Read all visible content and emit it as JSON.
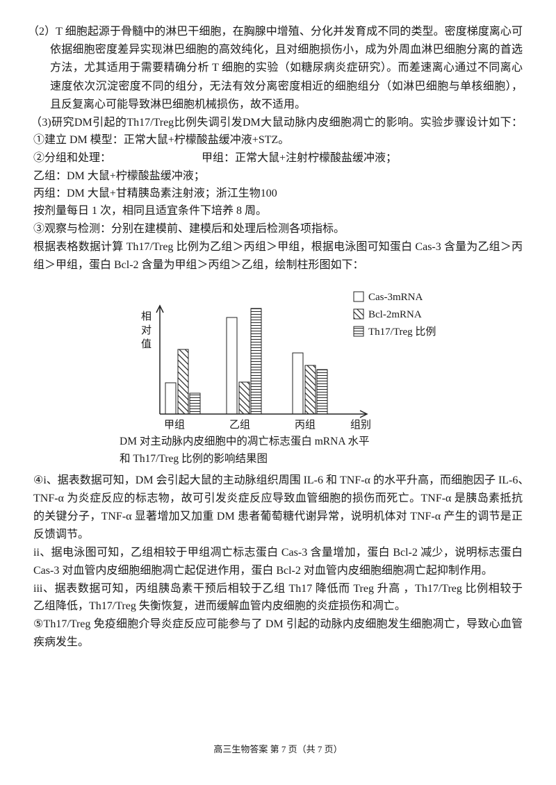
{
  "section2": {
    "lines": [
      "（2）T 细胞起源于骨髓中的淋巴干细胞，在胸腺中增殖、分化并发育成不同的类型。密度梯度离心可",
      "依据细胞密度差异实现淋巴细胞的高效纯化，且对细胞损伤小，成为外周血淋巴细胞分离的首选",
      "方法，尤其适用于需要精确分析 T 细胞的实验（如糖尿病炎症研究）。而差速离心通过不同离心",
      "速度依次沉淀密度不同的组分，无法有效分离密度相近的细胞组分（如淋巴细胞与单核细胞），",
      "且反复离心可能导致淋巴细胞机械损伤，故不适用。"
    ]
  },
  "section3": {
    "lines": [
      "（3)研究DM引起的Th17/Treg比例失调引发DM大鼠动脉内皮细胞凋亡的影响。实验步骤设计如下：",
      "①建立 DM 模型：正常大鼠+柠檬酸盐缓冲液+STZ。",
      "②分组和处理：",
      "乙组：DM 大鼠+柠檬酸盐缓冲液；",
      "丙组：DM 大鼠+甘精胰岛素注射液；浙江生物100",
      "按剂量每日 1 次，相同且适宜条件下培养 8 周。",
      "③观察与检测：分别在建模前、建模后和处理后检测各项指标。",
      "根据表格数据计算 Th17/Treg 比例为乙组＞丙组＞甲组，根据电泳图可知蛋白 Cas-3 含量为乙组＞丙",
      "组＞甲组，蛋白 Bcl-2 含量为甲组＞丙组＞乙组，绘制柱形图如下："
    ],
    "group_a": "甲组：正常大鼠+注射柠檬酸盐缓冲液；"
  },
  "chart_data": {
    "type": "bar",
    "categories": [
      "甲组",
      "乙组",
      "丙组"
    ],
    "xlabel": "组别",
    "ylabel": "相对值",
    "ylim": [
      0,
      160
    ],
    "grid": false,
    "legend_position": "top-right",
    "series": [
      {
        "name": "Cas-3mRNA",
        "values": [
          45,
          139,
          88
        ],
        "pattern": "blank"
      },
      {
        "name": "Bcl-2mRNA",
        "values": [
          93,
          46,
          70
        ],
        "pattern": "diagonal-hatch"
      },
      {
        "name": "Th17/Treg 比例",
        "values": [
          30,
          152,
          64
        ],
        "pattern": "horizontal-lines"
      }
    ],
    "caption": [
      "DM 对主动脉内皮细胞中的凋亡标志蛋白 mRNA 水平",
      "和 Th17/Treg 比例的影响结果图"
    ],
    "colors": {
      "stroke": "#222222",
      "fill": "#ffffff"
    }
  },
  "section4": {
    "lines": [
      "④i、据表数据可知，DM 会引起大鼠的主动脉组织周围 IL-6 和 TNF-α 的水平升高，而细胞因子 IL-6、",
      "TNF-α 为炎症反应的标志物，故可引发炎症反应导致血管细胞的损伤而死亡。TNF-α 是胰岛素抵抗",
      "的关键分子，TNF-α 显著增加又加重 DM 患者葡萄糖代谢异常，说明机体对 TNF-α 产生的调节是正",
      "反馈调节。",
      "ii、据电泳图可知，乙组相较于甲组凋亡标志蛋白 Cas-3 含量增加，蛋白 Bcl-2 减少，说明标志蛋白",
      "Cas-3 对血管内皮细胞细胞凋亡起促进作用，蛋白 Bcl-2 对血管内皮细胞细胞凋亡起抑制作用。",
      "iii、据表数据可知，丙组胰岛素干预后相较于乙组 Th17 降低而 Treg 升高 ，Th17/Treg 比例相较于",
      "乙组降低，Th17/Treg 失衡恢复，进而缓解血管内皮细胞的炎症损伤和凋亡。",
      "⑤Th17/Treg 免疫细胞介导炎症反应可能参与了 DM 引起的动脉内皮细胞发生细胞凋亡，导致心血管",
      "疾病发生。"
    ]
  },
  "footer": "高三生物答案  第 7 页（共 7 页）"
}
